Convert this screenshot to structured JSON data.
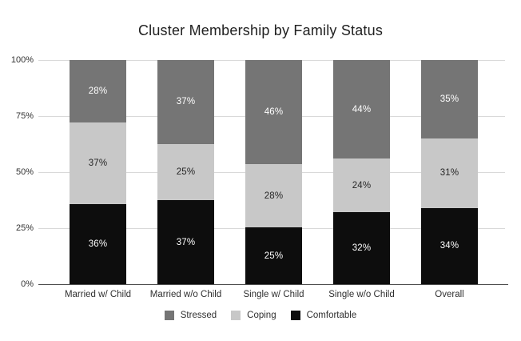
{
  "chart_data": {
    "type": "bar",
    "subtype": "stacked-100",
    "title": "Cluster Membership by Family Status",
    "categories": [
      "Married w/ Child",
      "Married w/o Child",
      "Single w/ Child",
      "Single w/o Child",
      "Overall"
    ],
    "series": [
      {
        "name": "Stressed",
        "color": "#757575",
        "label_color": "#ffffff",
        "values": [
          28,
          37,
          46,
          44,
          35
        ]
      },
      {
        "name": "Coping",
        "color": "#c8c8c8",
        "label_color": "#262626",
        "values": [
          37,
          25,
          28,
          24,
          31
        ]
      },
      {
        "name": "Comfortable",
        "color": "#0d0d0d",
        "label_color": "#ffffff",
        "values": [
          36,
          37,
          25,
          32,
          34
        ]
      }
    ],
    "stack_order_bottom_to_top": [
      "Comfortable",
      "Coping",
      "Stressed"
    ],
    "value_suffix": "%",
    "y_ticks": [
      "0%",
      "25%",
      "50%",
      "75%",
      "100%"
    ],
    "ylim": [
      0,
      100
    ],
    "grid": true,
    "legend_position": "bottom",
    "colors": {
      "gridline": "#d9d9d9",
      "axis_line": "#4d4d4d",
      "title_text": "#212121",
      "tick_text": "#333333"
    }
  }
}
